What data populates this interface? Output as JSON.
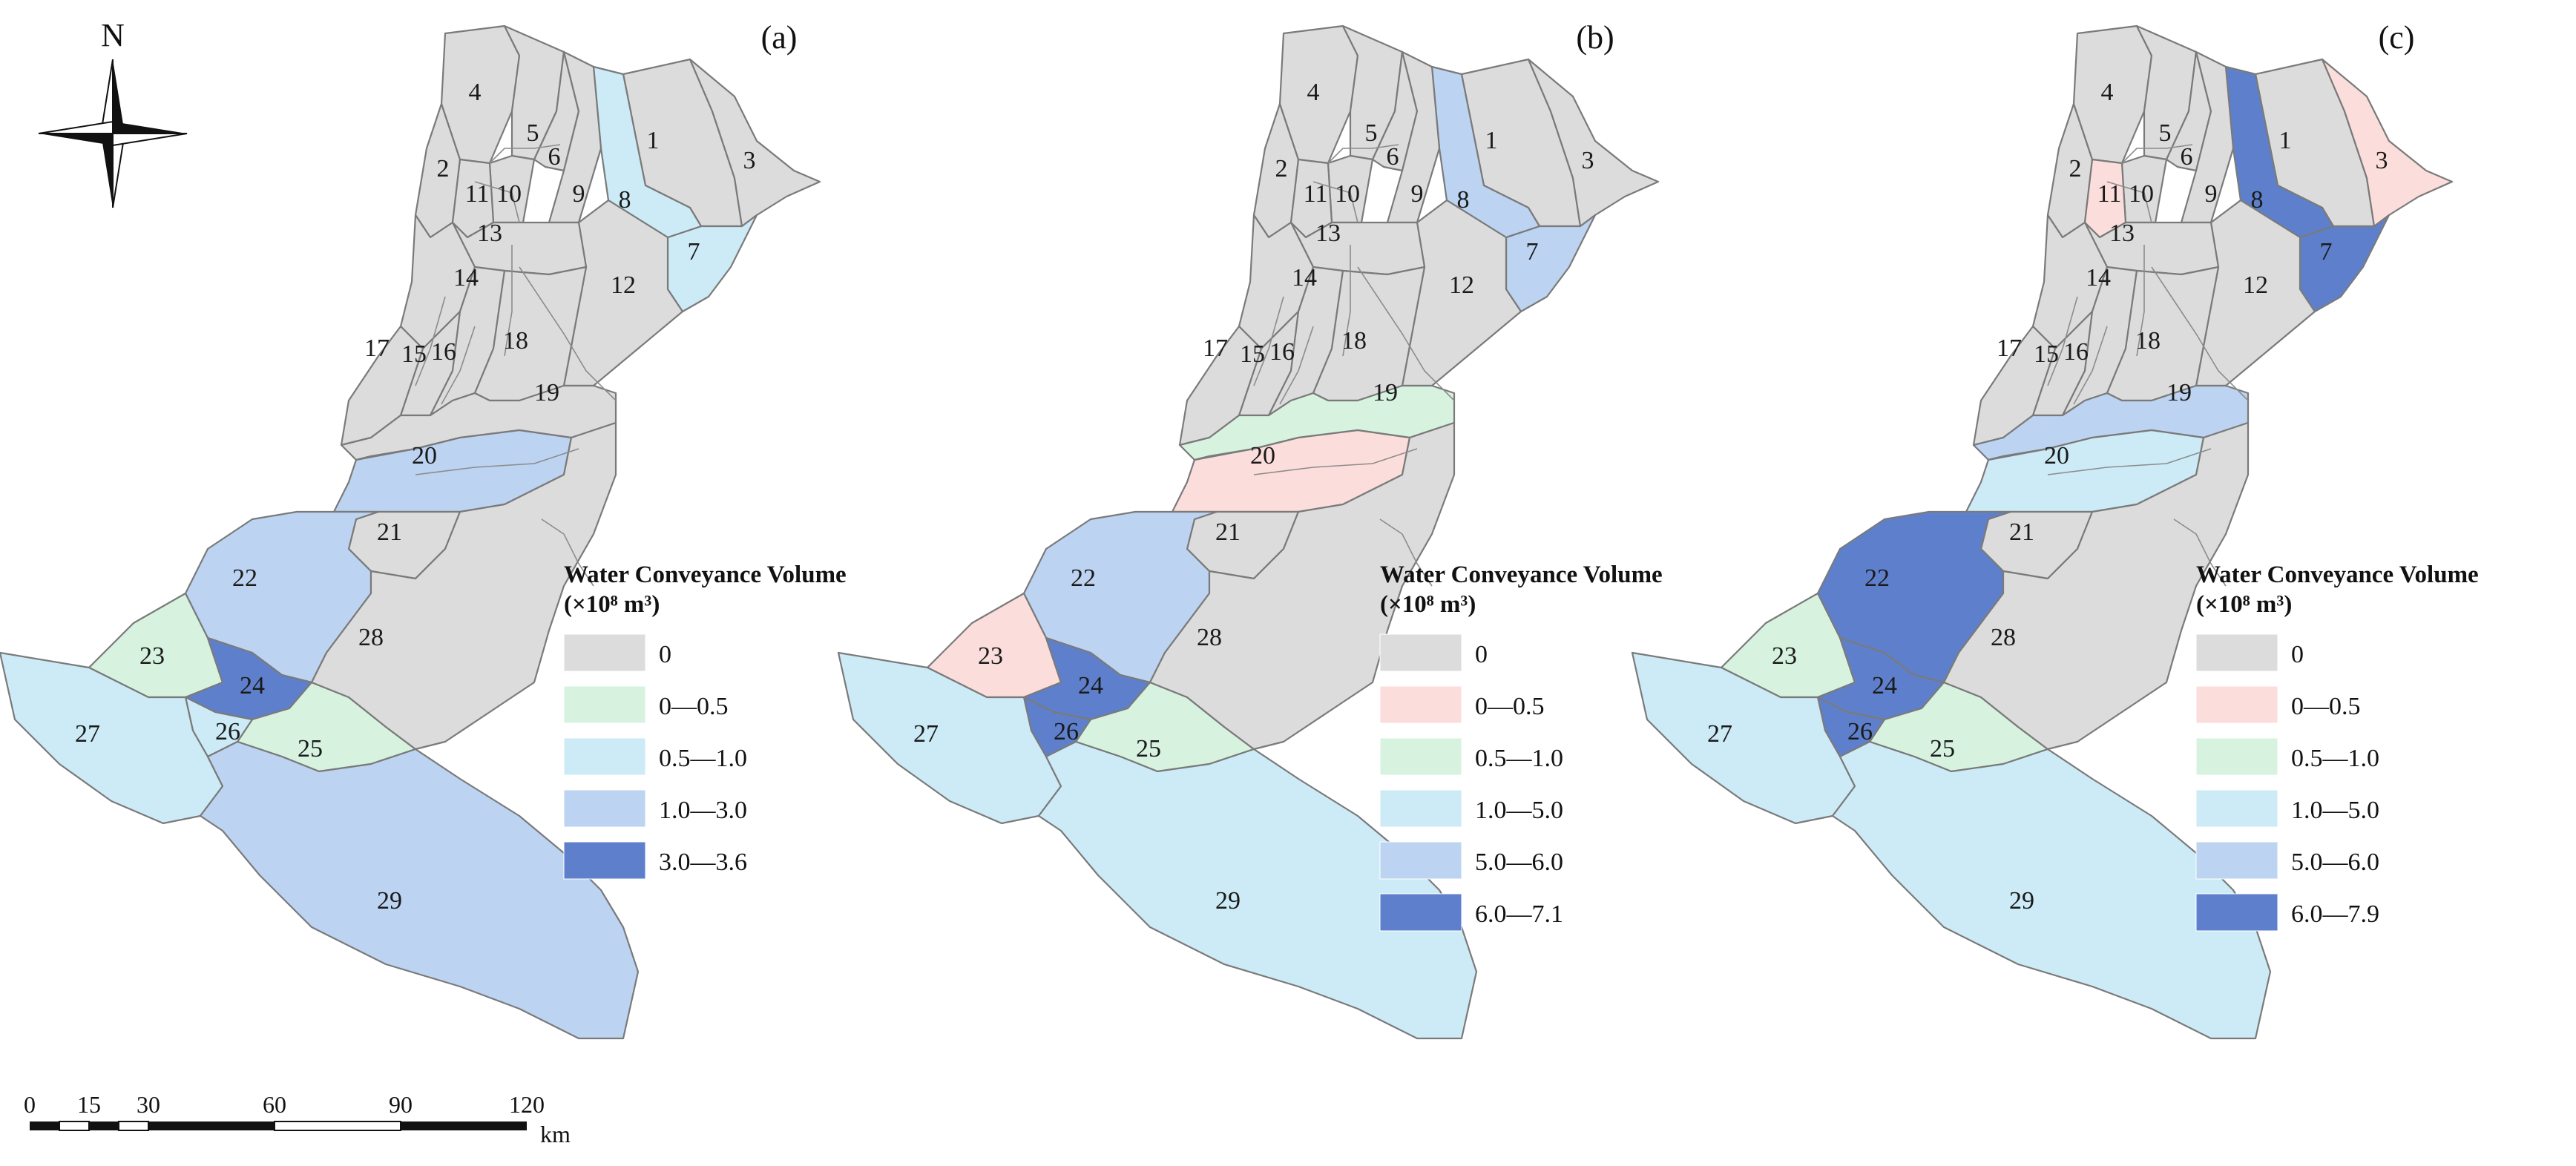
{
  "panels": [
    {
      "label": "(a)",
      "legend_title": "Water Conveyance Volume",
      "legend_unit": "(×10⁸ m³)",
      "classes": [
        {
          "label": "0",
          "color": "#dcdcdc"
        },
        {
          "label": "0—0.5",
          "color": "#d7f3e0"
        },
        {
          "label": "0.5—1.0",
          "color": "#cdebf6"
        },
        {
          "label": "1.0—3.0",
          "color": "#bcd3f1"
        },
        {
          "label": "3.0—3.6",
          "color": "#5e80cc"
        }
      ],
      "zone_class": {
        "1": 0,
        "2": 0,
        "3": 0,
        "4": 0,
        "5": 0,
        "6": 0,
        "7": 2,
        "8": 2,
        "9": 0,
        "10": 0,
        "11": 0,
        "12": 0,
        "13": 0,
        "14": 0,
        "15": 0,
        "16": 0,
        "17": 0,
        "18": 0,
        "19": 0,
        "20": 3,
        "21": 0,
        "22": 3,
        "23": 1,
        "24": 4,
        "25": 1,
        "26": 2,
        "27": 2,
        "28": 0,
        "29": 3
      }
    },
    {
      "label": "(b)",
      "legend_title": "Water Conveyance Volume",
      "legend_unit": "(×10⁸ m³)",
      "classes": [
        {
          "label": "0",
          "color": "#dcdcdc"
        },
        {
          "label": "0—0.5",
          "color": "#fbdedb"
        },
        {
          "label": "0.5—1.0",
          "color": "#d7f3e0"
        },
        {
          "label": "1.0—5.0",
          "color": "#cdebf6"
        },
        {
          "label": "5.0—6.0",
          "color": "#bcd3f1"
        },
        {
          "label": "6.0—7.1",
          "color": "#5e80cc"
        }
      ],
      "zone_class": {
        "1": 0,
        "2": 0,
        "3": 0,
        "4": 0,
        "5": 0,
        "6": 0,
        "7": 4,
        "8": 4,
        "9": 0,
        "10": 0,
        "11": 0,
        "12": 0,
        "13": 0,
        "14": 0,
        "15": 0,
        "16": 0,
        "17": 0,
        "18": 0,
        "19": 2,
        "20": 1,
        "21": 0,
        "22": 4,
        "23": 1,
        "24": 5,
        "25": 2,
        "26": 5,
        "27": 3,
        "28": 0,
        "29": 3
      }
    },
    {
      "label": "(c)",
      "legend_title": "Water Conveyance Volume",
      "legend_unit": "(×10⁸ m³)",
      "classes": [
        {
          "label": "0",
          "color": "#dcdcdc"
        },
        {
          "label": "0—0.5",
          "color": "#fbdedb"
        },
        {
          "label": "0.5—1.0",
          "color": "#d7f3e0"
        },
        {
          "label": "1.0—5.0",
          "color": "#cdebf6"
        },
        {
          "label": "5.0—6.0",
          "color": "#bcd3f1"
        },
        {
          "label": "6.0—7.9",
          "color": "#5e80cc"
        }
      ],
      "zone_class": {
        "1": 0,
        "2": 0,
        "3": 1,
        "4": 0,
        "5": 0,
        "6": 0,
        "7": 5,
        "8": 5,
        "9": 0,
        "10": 0,
        "11": 1,
        "12": 0,
        "13": 0,
        "14": 0,
        "15": 0,
        "16": 0,
        "17": 0,
        "18": 0,
        "19": 4,
        "20": 3,
        "21": 0,
        "22": 5,
        "23": 2,
        "24": 5,
        "25": 2,
        "26": 5,
        "27": 3,
        "28": 0,
        "29": 3
      }
    }
  ],
  "north_arrow": {
    "label": "N"
  },
  "scale_bar": {
    "ticks": [
      "0",
      "15",
      "30",
      "60",
      "90",
      "120"
    ],
    "unit": "km"
  }
}
